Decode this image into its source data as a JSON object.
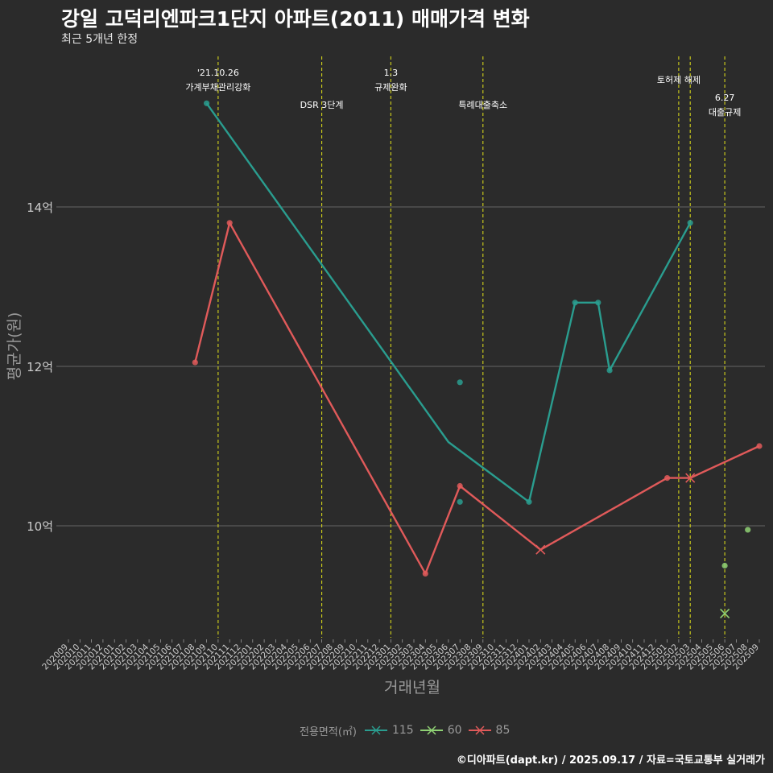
{
  "title": "강일 고덕리엔파크1단지 아파트(2011) 매매가격 변화",
  "subtitle": "최근 5개년 한정",
  "caption": "©디아파트(dapt.kr) / 2025.09.17 / 자료=국토교통부 실거래가",
  "colors": {
    "background": "#2b2b2b",
    "grid": "#7a7a7a",
    "event_line": "#d4d41a",
    "axis_text": "#cccccc",
    "axis_title": "#9a9a9a",
    "annotation": "#ffffff"
  },
  "chart_data": {
    "type": "line",
    "xlabel": "거래년월",
    "ylabel": "평균가(원)",
    "ylim": [
      8.7,
      15.9
    ],
    "yticks": [
      10,
      12,
      14
    ],
    "ytick_labels": [
      "10억",
      "12억",
      "14억"
    ],
    "categories": [
      "202009",
      "202010",
      "202011",
      "202012",
      "202101",
      "202102",
      "202103",
      "202104",
      "202105",
      "202106",
      "202107",
      "202108",
      "202109",
      "202110",
      "202111",
      "202112",
      "202201",
      "202202",
      "202203",
      "202204",
      "202205",
      "202206",
      "202207",
      "202208",
      "202209",
      "202210",
      "202211",
      "202212",
      "202301",
      "202302",
      "202303",
      "202304",
      "202305",
      "202306",
      "202307",
      "202308",
      "202309",
      "202310",
      "202311",
      "202312",
      "202401",
      "202402",
      "202403",
      "202404",
      "202405",
      "202406",
      "202407",
      "202408",
      "202409",
      "202410",
      "202411",
      "202412",
      "202501",
      "202502",
      "202503",
      "202504",
      "202505",
      "202506",
      "202507",
      "202508",
      "202509"
    ],
    "legend_title": "전용면적(㎡)",
    "series": [
      {
        "name": "115",
        "color": "#2a9d8f",
        "line": [
          [
            "202109",
            15.3
          ],
          [
            "202306",
            11.05
          ],
          [
            "202401",
            10.3
          ],
          [
            "202405",
            12.8
          ],
          [
            "202407",
            12.8
          ],
          [
            "202408",
            11.95
          ],
          [
            "202503",
            13.8
          ]
        ],
        "points": [
          [
            "202109",
            15.3
          ],
          [
            "202307",
            11.8
          ],
          [
            "202307",
            10.3
          ],
          [
            "202401",
            10.3
          ],
          [
            "202405",
            12.8
          ],
          [
            "202407",
            12.8
          ],
          [
            "202408",
            11.95
          ],
          [
            "202503",
            13.8
          ]
        ],
        "cross_points": []
      },
      {
        "name": "60",
        "color": "#8fd174",
        "line": [],
        "points": [
          [
            "202506",
            9.5
          ],
          [
            "202508",
            9.95
          ]
        ],
        "cross_points": [
          [
            "202506",
            8.9
          ]
        ]
      },
      {
        "name": "85",
        "color": "#e05a5a",
        "line": [
          [
            "202108",
            12.05
          ],
          [
            "202111",
            13.8
          ],
          [
            "202304",
            9.4
          ],
          [
            "202307",
            10.5
          ],
          [
            "202402",
            9.7
          ],
          [
            "202501",
            10.6
          ],
          [
            "202503",
            10.6
          ],
          [
            "202509",
            11.0
          ]
        ],
        "points": [
          [
            "202108",
            12.05
          ],
          [
            "202111",
            13.8
          ],
          [
            "202304",
            9.4
          ],
          [
            "202307",
            10.5
          ],
          [
            "202501",
            10.6
          ],
          [
            "202509",
            11.0
          ]
        ],
        "cross_points": [
          [
            "202402",
            9.7
          ],
          [
            "202503",
            10.6
          ]
        ]
      }
    ],
    "events": [
      {
        "x": 13.0,
        "label_lines": [
          "'21.10.26",
          "가계부채관리강화"
        ],
        "tier": 1
      },
      {
        "x": 22.0,
        "label_lines": [
          "DSR 3단계"
        ],
        "tier": 3
      },
      {
        "x": 28.0,
        "label_lines": [
          "1.3",
          "규제완화"
        ],
        "tier": 1
      },
      {
        "x": 36.0,
        "label_lines": [
          "특례대출축소"
        ],
        "tier": 3
      },
      {
        "x": 53.0,
        "label_lines": [
          "토허제 해제"
        ],
        "tier": 2
      },
      {
        "x": 57.0,
        "label_lines": [
          "6.27",
          "대출규제"
        ],
        "tier": 4
      }
    ],
    "extra_event_lines": [
      54.0
    ]
  }
}
